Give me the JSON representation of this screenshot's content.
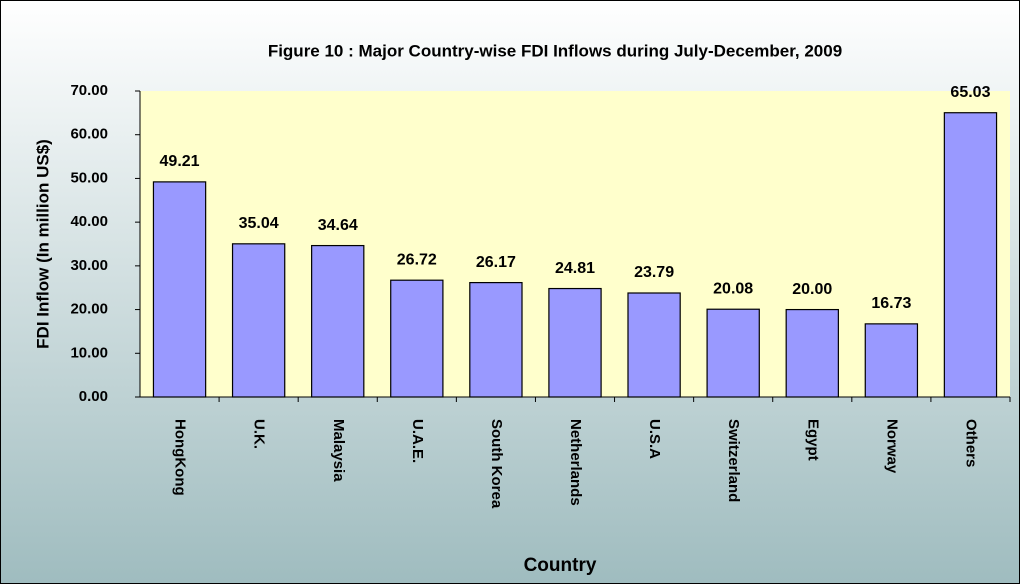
{
  "chart_data": {
    "type": "bar",
    "title": "Figure 10 : Major Country-wise FDI Inflows during July-December, 2009",
    "x_label": "Country",
    "y_label": "FDI Inflow (In million US$)",
    "categories": [
      "HongKong",
      "U.K.",
      "Malaysia",
      "U.A.E.",
      "South Korea",
      "Netherlands",
      "U.S.A",
      "Switzerland",
      "Egypt",
      "Norway",
      "Others"
    ],
    "values": [
      49.21,
      35.04,
      34.64,
      26.72,
      26.17,
      24.81,
      23.79,
      20.08,
      20.0,
      16.73,
      65.03
    ],
    "value_labels": [
      "49.21",
      "35.04",
      "34.64",
      "26.72",
      "26.17",
      "24.81",
      "23.79",
      "20.08",
      "20.00",
      "16.73",
      "65.03"
    ],
    "color": "#9999ff",
    "ylim": [
      0,
      70
    ],
    "yticks": [
      {
        "value": 0,
        "label": "0.00"
      },
      {
        "value": 10,
        "label": "10.00"
      },
      {
        "value": 20,
        "label": "20.00"
      },
      {
        "value": 30,
        "label": "30.00"
      },
      {
        "value": 40,
        "label": "40.00"
      },
      {
        "value": 50,
        "label": "50.00"
      },
      {
        "value": 60,
        "label": "60.00"
      },
      {
        "value": 70,
        "label": "70.00"
      }
    ],
    "grid": false
  }
}
